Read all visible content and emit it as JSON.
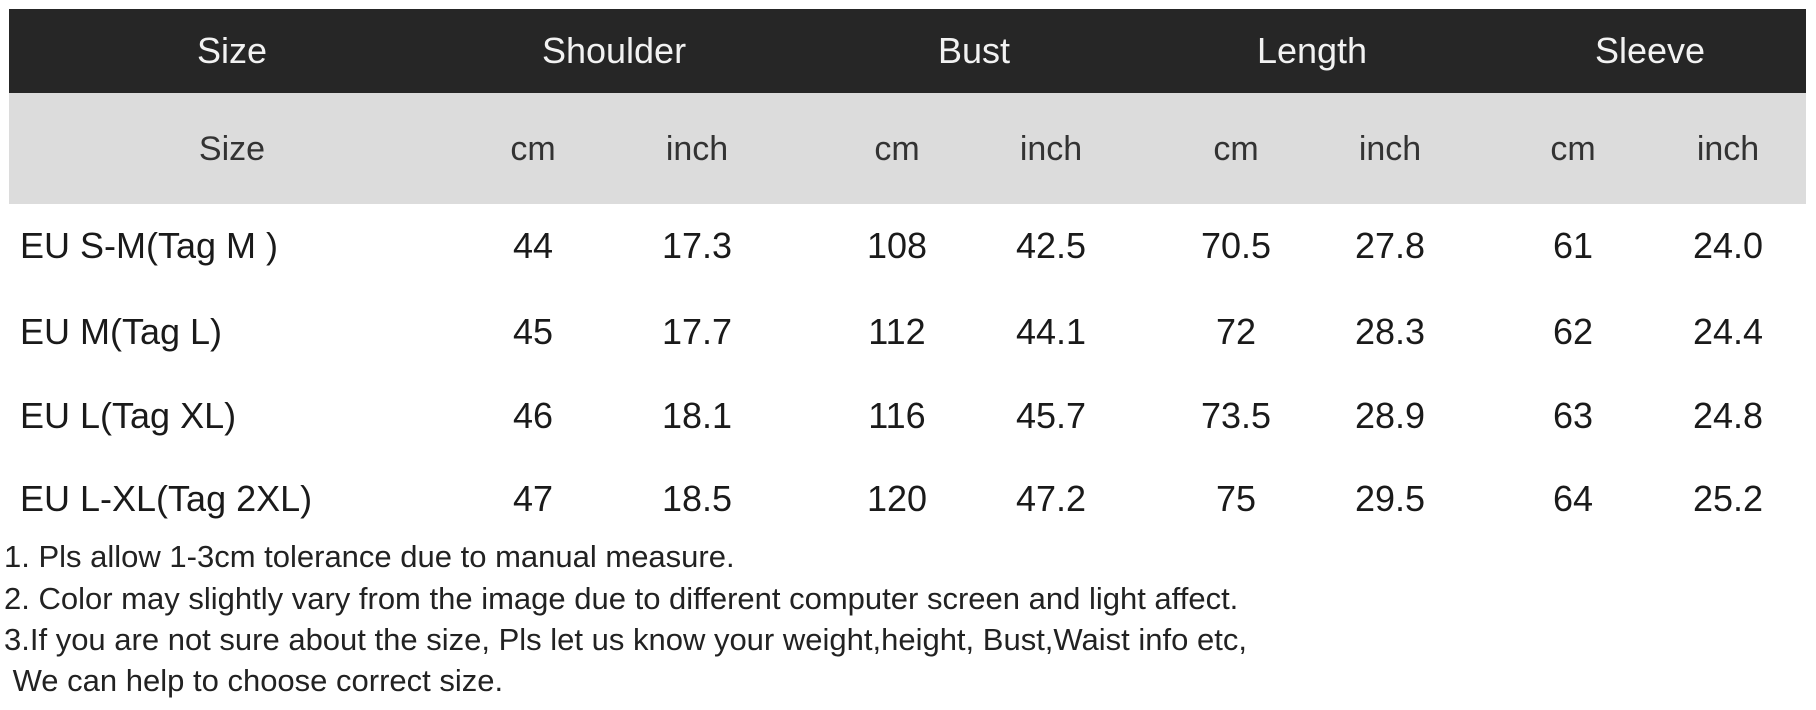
{
  "header": {
    "groups": [
      "Size",
      "Shoulder",
      "Bust",
      "Length",
      "Sleeve"
    ]
  },
  "subheader": {
    "size": "Size",
    "units": [
      "cm",
      "inch",
      "cm",
      "inch",
      "cm",
      "inch",
      "cm",
      "inch"
    ]
  },
  "rows": [
    {
      "label": "EU S-M(Tag M )",
      "values": [
        "44",
        "17.3",
        "108",
        "42.5",
        "70.5",
        "27.8",
        "61",
        "24.0"
      ]
    },
    {
      "label": "EU M(Tag L)",
      "values": [
        "45",
        "17.7",
        "112",
        "44.1",
        "72",
        "28.3",
        "62",
        "24.4"
      ]
    },
    {
      "label": "EU L(Tag XL)",
      "values": [
        "46",
        "18.1",
        "116",
        "45.7",
        "73.5",
        "28.9",
        "63",
        "24.8"
      ]
    },
    {
      "label": "EU L-XL(Tag 2XL)",
      "values": [
        "47",
        "18.5",
        "120",
        "47.2",
        "75",
        "29.5",
        "64",
        "25.2"
      ]
    }
  ],
  "notes": [
    "1. Pls allow 1-3cm tolerance due to manual measure.",
    "2. Color may slightly vary from the image due to different computer screen and light affect.",
    "3.If you are not sure about the size, Pls let us know your weight,height, Bust,Waist info etc,",
    " We can help to choose correct size."
  ],
  "colors": {
    "header_bg": "#262626",
    "subheader_bg": "#dcdcdc"
  }
}
